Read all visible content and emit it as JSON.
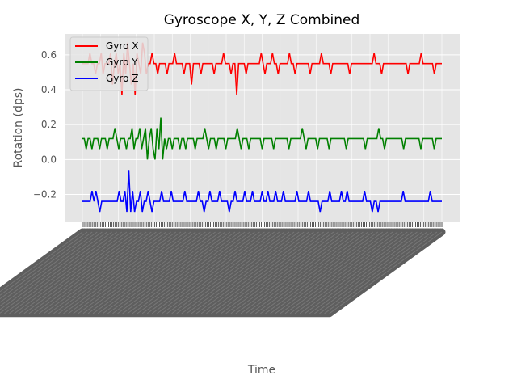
{
  "chart_data": {
    "type": "line",
    "title": "Gyroscope X, Y, Z Combined",
    "xlabel": "Time",
    "ylabel": "Rotation (dps)",
    "ylim": [
      -0.36,
      0.72
    ],
    "yticks": [
      -0.2,
      0.0,
      0.2,
      0.4,
      0.6
    ],
    "ytick_labels": [
      "−0.2",
      "0.0",
      "0.2",
      "0.4",
      "0.6"
    ],
    "grid": true,
    "legend_position": "top-left",
    "x_tick_labels_note": "dense overlapping rotated timestamps, illegible",
    "series": [
      {
        "name": "Gyro X",
        "color": "#ff0000",
        "baseline": 0.55,
        "values": [
          0.55,
          0.55,
          0.55,
          0.55,
          0.61,
          0.55,
          0.55,
          0.49,
          0.55,
          0.55,
          0.61,
          0.49,
          0.55,
          0.55,
          0.55,
          0.61,
          0.43,
          0.55,
          0.61,
          0.49,
          0.55,
          0.37,
          0.61,
          0.49,
          0.67,
          0.55,
          0.43,
          0.55,
          0.37,
          0.61,
          0.55,
          0.49,
          0.67,
          0.61,
          0.49,
          0.55,
          0.55,
          0.61,
          0.55,
          0.55,
          0.49,
          0.55,
          0.55,
          0.55,
          0.55,
          0.49,
          0.55,
          0.55,
          0.55,
          0.61,
          0.55,
          0.55,
          0.55,
          0.55,
          0.49,
          0.55,
          0.55,
          0.55,
          0.43,
          0.55,
          0.55,
          0.55,
          0.55,
          0.49,
          0.55,
          0.55,
          0.55,
          0.55,
          0.55,
          0.55,
          0.49,
          0.55,
          0.55,
          0.55,
          0.55,
          0.61,
          0.55,
          0.55,
          0.55,
          0.49,
          0.55,
          0.55,
          0.37,
          0.55,
          0.55,
          0.55,
          0.55,
          0.49,
          0.55,
          0.55,
          0.55,
          0.55,
          0.55,
          0.55,
          0.55,
          0.61,
          0.55,
          0.49,
          0.55,
          0.55,
          0.55,
          0.61,
          0.55,
          0.55,
          0.49,
          0.55,
          0.55,
          0.55,
          0.55,
          0.55,
          0.61,
          0.55,
          0.55,
          0.49,
          0.55,
          0.55,
          0.55,
          0.55,
          0.55,
          0.55,
          0.55,
          0.49,
          0.55,
          0.55,
          0.55,
          0.55,
          0.55,
          0.61,
          0.55,
          0.55,
          0.55,
          0.55,
          0.49,
          0.55,
          0.55,
          0.55,
          0.55,
          0.55,
          0.55,
          0.55,
          0.55,
          0.55,
          0.49,
          0.55,
          0.55,
          0.55,
          0.55,
          0.55,
          0.55,
          0.55,
          0.55,
          0.55,
          0.55,
          0.55,
          0.55,
          0.61,
          0.55,
          0.55,
          0.55,
          0.49,
          0.55,
          0.55,
          0.55,
          0.55,
          0.55,
          0.55,
          0.55,
          0.55,
          0.55,
          0.55,
          0.55,
          0.55,
          0.55,
          0.49,
          0.55,
          0.55,
          0.55,
          0.55,
          0.55,
          0.55,
          0.61,
          0.55,
          0.55,
          0.55,
          0.55,
          0.55,
          0.55,
          0.49,
          0.55,
          0.55,
          0.55,
          0.55
        ]
      },
      {
        "name": "Gyro Y",
        "color": "#008000",
        "baseline": 0.12,
        "values": [
          0.12,
          0.12,
          0.06,
          0.12,
          0.12,
          0.06,
          0.12,
          0.12,
          0.12,
          0.06,
          0.12,
          0.12,
          0.12,
          0.06,
          0.12,
          0.12,
          0.12,
          0.18,
          0.12,
          0.06,
          0.12,
          0.12,
          0.12,
          0.06,
          0.12,
          0.12,
          0.18,
          0.06,
          0.12,
          0.12,
          0.18,
          0.06,
          0.12,
          0.18,
          0.0,
          0.12,
          0.18,
          0.06,
          0.0,
          0.18,
          0.06,
          0.24,
          0.0,
          0.12,
          0.06,
          0.12,
          0.12,
          0.06,
          0.12,
          0.12,
          0.12,
          0.06,
          0.12,
          0.12,
          0.06,
          0.12,
          0.12,
          0.12,
          0.12,
          0.06,
          0.12,
          0.12,
          0.12,
          0.12,
          0.18,
          0.12,
          0.06,
          0.12,
          0.12,
          0.12,
          0.06,
          0.12,
          0.12,
          0.12,
          0.12,
          0.06,
          0.12,
          0.12,
          0.12,
          0.12,
          0.12,
          0.18,
          0.12,
          0.06,
          0.12,
          0.12,
          0.12,
          0.06,
          0.12,
          0.12,
          0.12,
          0.12,
          0.12,
          0.12,
          0.06,
          0.12,
          0.12,
          0.12,
          0.12,
          0.12,
          0.06,
          0.12,
          0.12,
          0.12,
          0.12,
          0.12,
          0.12,
          0.12,
          0.06,
          0.12,
          0.12,
          0.12,
          0.12,
          0.12,
          0.12,
          0.18,
          0.12,
          0.06,
          0.12,
          0.12,
          0.12,
          0.12,
          0.12,
          0.06,
          0.12,
          0.12,
          0.12,
          0.12,
          0.12,
          0.06,
          0.12,
          0.12,
          0.12,
          0.12,
          0.12,
          0.12,
          0.12,
          0.12,
          0.06,
          0.12,
          0.12,
          0.12,
          0.12,
          0.12,
          0.12,
          0.12,
          0.12,
          0.12,
          0.06,
          0.12,
          0.12,
          0.12,
          0.12,
          0.12,
          0.12,
          0.18,
          0.12,
          0.12,
          0.06,
          0.12,
          0.12,
          0.12,
          0.12,
          0.12,
          0.12,
          0.12,
          0.12,
          0.12,
          0.06,
          0.12,
          0.12,
          0.12,
          0.12,
          0.12,
          0.12,
          0.12,
          0.12,
          0.06,
          0.12,
          0.12,
          0.12,
          0.12,
          0.12,
          0.12,
          0.06,
          0.12,
          0.12,
          0.12,
          0.12
        ]
      },
      {
        "name": "Gyro Z",
        "color": "#0000ff",
        "baseline": -0.24,
        "values": [
          -0.24,
          -0.24,
          -0.24,
          -0.24,
          -0.24,
          -0.18,
          -0.24,
          -0.18,
          -0.24,
          -0.3,
          -0.24,
          -0.24,
          -0.24,
          -0.24,
          -0.24,
          -0.24,
          -0.24,
          -0.24,
          -0.24,
          -0.18,
          -0.24,
          -0.24,
          -0.18,
          -0.3,
          -0.06,
          -0.3,
          -0.18,
          -0.3,
          -0.24,
          -0.24,
          -0.18,
          -0.3,
          -0.24,
          -0.24,
          -0.18,
          -0.24,
          -0.3,
          -0.24,
          -0.24,
          -0.24,
          -0.24,
          -0.18,
          -0.24,
          -0.24,
          -0.24,
          -0.24,
          -0.18,
          -0.24,
          -0.24,
          -0.24,
          -0.24,
          -0.24,
          -0.24,
          -0.18,
          -0.24,
          -0.24,
          -0.24,
          -0.24,
          -0.24,
          -0.24,
          -0.18,
          -0.24,
          -0.24,
          -0.3,
          -0.24,
          -0.24,
          -0.18,
          -0.24,
          -0.24,
          -0.24,
          -0.24,
          -0.18,
          -0.24,
          -0.24,
          -0.24,
          -0.24,
          -0.3,
          -0.24,
          -0.24,
          -0.18,
          -0.24,
          -0.24,
          -0.24,
          -0.24,
          -0.18,
          -0.24,
          -0.24,
          -0.24,
          -0.18,
          -0.24,
          -0.24,
          -0.24,
          -0.24,
          -0.18,
          -0.24,
          -0.24,
          -0.18,
          -0.24,
          -0.24,
          -0.24,
          -0.18,
          -0.24,
          -0.24,
          -0.24,
          -0.18,
          -0.24,
          -0.24,
          -0.24,
          -0.24,
          -0.24,
          -0.24,
          -0.18,
          -0.24,
          -0.24,
          -0.24,
          -0.24,
          -0.24,
          -0.18,
          -0.24,
          -0.24,
          -0.24,
          -0.24,
          -0.24,
          -0.3,
          -0.24,
          -0.24,
          -0.24,
          -0.24,
          -0.18,
          -0.24,
          -0.24,
          -0.24,
          -0.24,
          -0.24,
          -0.18,
          -0.24,
          -0.24,
          -0.18,
          -0.24,
          -0.24,
          -0.24,
          -0.24,
          -0.24,
          -0.24,
          -0.24,
          -0.24,
          -0.18,
          -0.24,
          -0.24,
          -0.24,
          -0.3,
          -0.24,
          -0.24,
          -0.3,
          -0.24,
          -0.24,
          -0.24,
          -0.24,
          -0.24,
          -0.24,
          -0.24,
          -0.24,
          -0.24,
          -0.24,
          -0.24,
          -0.24,
          -0.18,
          -0.24,
          -0.24,
          -0.24,
          -0.24,
          -0.24,
          -0.24,
          -0.24,
          -0.24,
          -0.24,
          -0.24,
          -0.24,
          -0.24,
          -0.24,
          -0.18,
          -0.24,
          -0.24,
          -0.24,
          -0.24,
          -0.24,
          -0.24
        ]
      }
    ]
  }
}
